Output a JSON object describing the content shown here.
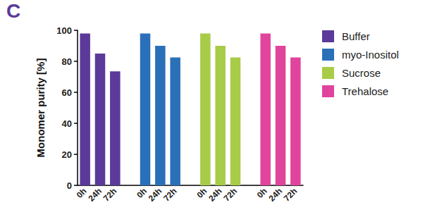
{
  "chart_data": {
    "type": "bar",
    "title": "C",
    "y_label": "Monomer purity [%]",
    "categories": [
      "0h",
      "24h",
      "72h",
      null,
      "0h",
      "24h",
      "72h",
      null,
      "0h",
      "24h",
      "72h",
      null,
      "0h",
      "24h",
      "72h"
    ],
    "series": [
      {
        "name": "Buffer",
        "color": "#5b3a9a",
        "values": [
          98,
          85,
          73.5,
          null,
          null,
          null,
          null,
          null,
          null,
          null,
          null,
          null,
          null,
          null,
          null
        ]
      },
      {
        "name": "myo-Inositol",
        "color": "#2a70b8",
        "values": [
          null,
          null,
          null,
          null,
          98,
          90,
          82.5,
          null,
          null,
          null,
          null,
          null,
          null,
          null,
          null
        ]
      },
      {
        "name": "Sucrose",
        "color": "#a8cc47",
        "values": [
          null,
          null,
          null,
          null,
          null,
          null,
          null,
          null,
          98,
          90,
          82.5,
          null,
          null,
          null,
          null
        ]
      },
      {
        "name": "Trehalose",
        "color": "#e0449c",
        "values": [
          null,
          null,
          null,
          null,
          null,
          null,
          null,
          null,
          null,
          null,
          null,
          null,
          98,
          90,
          82.5
        ]
      }
    ],
    "ylim": [
      0,
      100
    ],
    "yticks": [
      0,
      20,
      40,
      60,
      80,
      100
    ],
    "grid": false,
    "legend": "right"
  }
}
